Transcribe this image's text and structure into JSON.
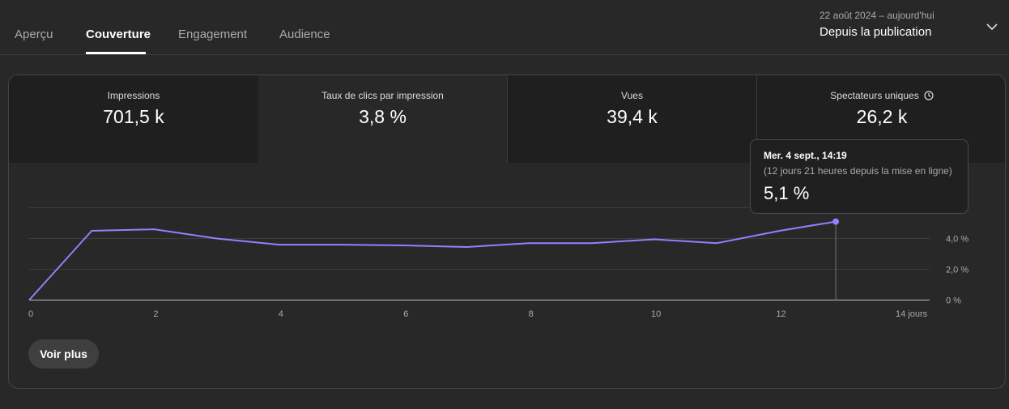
{
  "tabs": [
    {
      "label": "Aperçu",
      "active": false
    },
    {
      "label": "Couverture",
      "active": true
    },
    {
      "label": "Engagement",
      "active": false
    },
    {
      "label": "Audience",
      "active": false
    }
  ],
  "date_range": {
    "range": "22 août 2024 – aujourd'hui",
    "label": "Depuis la publication"
  },
  "metrics": [
    {
      "label": "Impressions",
      "value": "701,5 k"
    },
    {
      "label": "Taux de clics par impression",
      "value": "3,8 %"
    },
    {
      "label": "Vues",
      "value": "39,4 k"
    },
    {
      "label": "Spectateurs uniques",
      "value": "26,2 k"
    }
  ],
  "tooltip": {
    "title": "Mer. 4 sept., 14:19",
    "subtitle": "(12 jours 21 heures depuis la mise en ligne)",
    "value": "5,1 %"
  },
  "more_button": "Voir plus",
  "colors": {
    "line": "#8f82ff",
    "background": "#282828",
    "grid": "#3c3c3c"
  },
  "chart_data": {
    "type": "line",
    "x": [
      0,
      1,
      2,
      3,
      4,
      5,
      6,
      7,
      8,
      9,
      10,
      11,
      12,
      12.9
    ],
    "values": [
      0,
      4.5,
      4.6,
      4.0,
      3.6,
      3.6,
      3.55,
      3.45,
      3.7,
      3.7,
      3.95,
      3.7,
      4.5,
      5.1
    ],
    "xlim": [
      0,
      14
    ],
    "ylim": [
      0,
      6
    ],
    "x_ticks": [
      {
        "value": 0,
        "label": "0"
      },
      {
        "value": 2,
        "label": "2"
      },
      {
        "value": 4,
        "label": "4"
      },
      {
        "value": 6,
        "label": "6"
      },
      {
        "value": 8,
        "label": "8"
      },
      {
        "value": 10,
        "label": "10"
      },
      {
        "value": 12,
        "label": "12"
      },
      {
        "value": 14,
        "label": "14 jours"
      }
    ],
    "y_ticks": [
      {
        "value": 0,
        "label": "0 %"
      },
      {
        "value": 2,
        "label": "2,0 %"
      },
      {
        "value": 4,
        "label": "4,0 %"
      }
    ],
    "grid": true,
    "highlight_index": 13
  }
}
